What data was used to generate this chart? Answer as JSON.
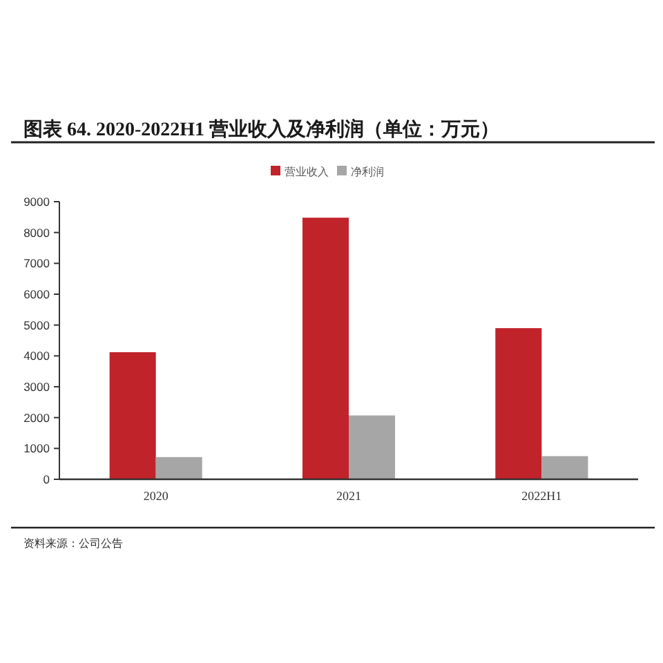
{
  "chart_data": {
    "type": "bar",
    "title": "图表 64. 2020-2022H1 营业收入及净利润（单位：万元）",
    "annotations": [
      "资料来源：公司公告"
    ],
    "categories": [
      "2020",
      "2021",
      "2022H1"
    ],
    "series": [
      {
        "name": "营业收入",
        "color": "#c1232b",
        "values": [
          4120,
          8480,
          4900
        ]
      },
      {
        "name": "净利润",
        "color": "#a6a6a6",
        "values": [
          720,
          2070,
          750
        ]
      }
    ],
    "ylim": [
      0,
      9000
    ],
    "yticks": [
      0,
      1000,
      2000,
      3000,
      4000,
      5000,
      6000,
      7000,
      8000,
      9000
    ],
    "legend": "top"
  }
}
